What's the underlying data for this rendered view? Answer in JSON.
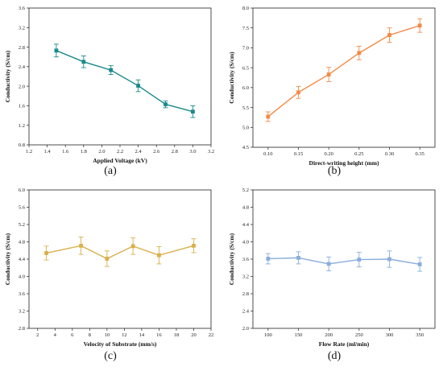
{
  "chart_data": [
    {
      "panel_label": "(a)",
      "type": "line",
      "xlabel": "Applied Voltage (kV)",
      "ylabel": "Conductivity (S/cm)",
      "xlim": [
        1.2,
        3.2
      ],
      "ylim": [
        0.8,
        3.6
      ],
      "xticks": [
        "1.2",
        "1.4",
        "1.6",
        "1.8",
        "2.0",
        "2.2",
        "2.4",
        "2.6",
        "2.8",
        "3.0",
        "3.2"
      ],
      "yticks": [
        "0.8",
        "1.2",
        "1.6",
        "2.0",
        "2.4",
        "2.8",
        "3.2",
        "3.6"
      ],
      "color": "#1a8a8a",
      "marker": "square",
      "x": [
        1.5,
        1.8,
        2.1,
        2.4,
        2.7,
        3.0
      ],
      "y": [
        2.73,
        2.5,
        2.33,
        2.01,
        1.63,
        1.48
      ],
      "err": [
        0.13,
        0.12,
        0.09,
        0.12,
        0.07,
        0.12
      ]
    },
    {
      "panel_label": "(b)",
      "type": "line",
      "xlabel": "Direct-writing height (mm)",
      "ylabel": "Conductivity (S/cm)",
      "xlim": [
        0.075,
        0.375
      ],
      "ylim": [
        4.5,
        8.0
      ],
      "xticks": [
        "0.10",
        "0.15",
        "0.20",
        "0.25",
        "0.30",
        "0.35"
      ],
      "yticks": [
        "4.5",
        "5.0",
        "5.5",
        "6.0",
        "6.5",
        "7.0",
        "7.5",
        "8.0"
      ],
      "color": "#f28a45",
      "marker": "square",
      "x": [
        0.1,
        0.15,
        0.2,
        0.25,
        0.3,
        0.35
      ],
      "y": [
        5.27,
        5.88,
        6.33,
        6.87,
        7.32,
        7.56
      ],
      "err": [
        0.12,
        0.15,
        0.18,
        0.17,
        0.18,
        0.17
      ]
    },
    {
      "panel_label": "(c)",
      "type": "line",
      "xlabel": "Velocity of Substrate (mm/s)",
      "ylabel": "Conductivity (S/cm)",
      "xlim": [
        1,
        22
      ],
      "ylim": [
        2.8,
        6.0
      ],
      "xticks": [
        "2",
        "4",
        "6",
        "8",
        "10",
        "12",
        "14",
        "16",
        "18",
        "20",
        "22"
      ],
      "yticks": [
        "2.8",
        "3.2",
        "3.6",
        "4.0",
        "4.4",
        "4.8",
        "5.2",
        "5.6",
        "6.0"
      ],
      "color": "#d9b04a",
      "marker": "square",
      "x": [
        3,
        7,
        10,
        13,
        16,
        20
      ],
      "y": [
        4.54,
        4.71,
        4.41,
        4.7,
        4.49,
        4.71
      ],
      "err": [
        0.16,
        0.2,
        0.18,
        0.19,
        0.2,
        0.16
      ]
    },
    {
      "panel_label": "(d)",
      "type": "line",
      "xlabel": "Flow Rate (ml/min)",
      "ylabel": "Conductivity (S/cm)",
      "xlim": [
        75,
        375
      ],
      "ylim": [
        2.0,
        5.2
      ],
      "xticks": [
        "100",
        "150",
        "200",
        "250",
        "300",
        "350"
      ],
      "yticks": [
        "2.0",
        "2.4",
        "2.8",
        "3.2",
        "3.6",
        "4.0",
        "4.4",
        "4.8",
        "5.2"
      ],
      "color": "#8aaedb",
      "marker": "square",
      "x": [
        100,
        150,
        200,
        250,
        300,
        350
      ],
      "y": [
        3.61,
        3.63,
        3.49,
        3.59,
        3.6,
        3.48
      ],
      "err": [
        0.12,
        0.14,
        0.16,
        0.17,
        0.19,
        0.16
      ]
    }
  ]
}
